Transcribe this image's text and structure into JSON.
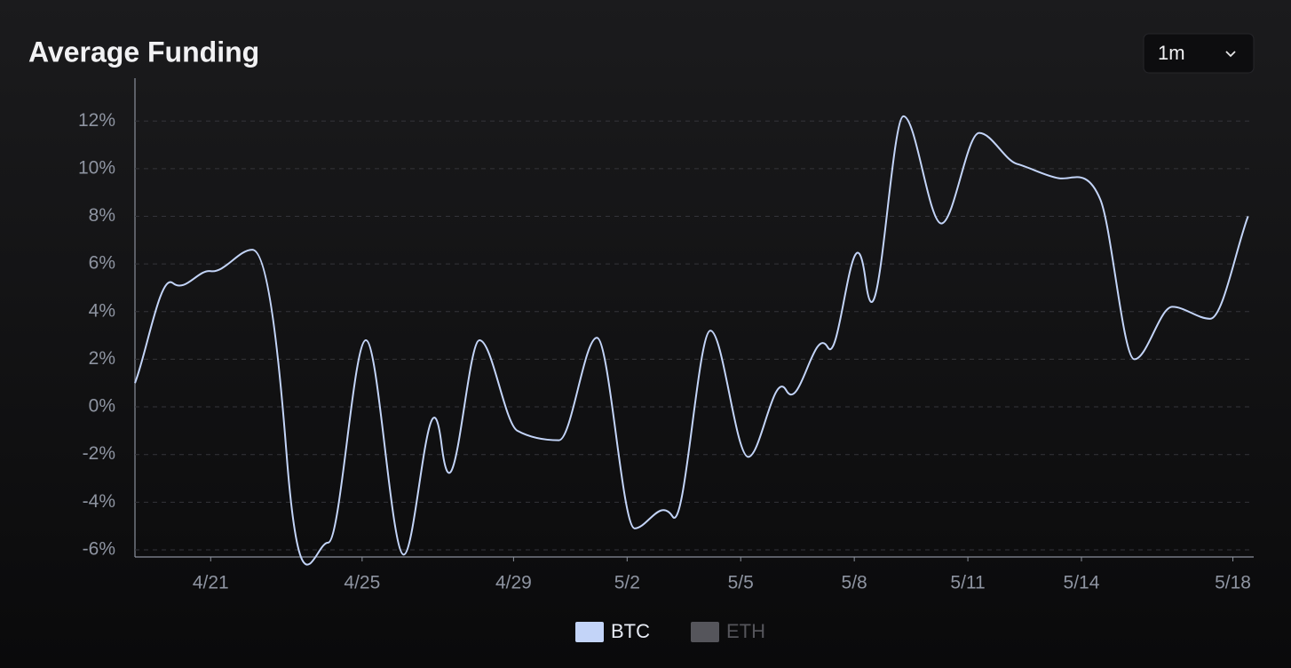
{
  "chart_data": {
    "type": "line",
    "title": "Average Funding",
    "range_selector": "1m",
    "x": [
      0.0,
      1.0,
      2.0,
      3.1,
      4.0,
      5.1,
      6.1,
      7.1,
      8.1,
      9.1,
      10.1,
      11.2,
      12.2,
      13.2,
      14.2,
      15.2,
      16.2,
      17.2,
      18.3,
      19.3,
      20.3,
      21.3,
      22.3,
      23.3,
      24.4,
      25.5,
      26.4,
      27.4,
      28.4,
      29.4
    ],
    "series": [
      {
        "name": "BTC",
        "color": "#c3d4f8",
        "values": [
          1.0,
          5.2,
          5.7,
          6.6,
          -1.9,
          -5.7,
          2.8,
          -6.2,
          -1.6,
          2.8,
          -1.0,
          -1.4,
          2.9,
          -5.1,
          -4.6,
          3.2,
          -2.1,
          0.7,
          2.5,
          5.3,
          12.2,
          7.7,
          11.5,
          10.2,
          9.6,
          8.7,
          2.0,
          4.2,
          3.7,
          8.0
        ]
      },
      {
        "name": "ETH",
        "color": "#55555b",
        "hidden": true
      }
    ],
    "xlim": [
      0,
      29.55
    ],
    "xticks": [
      {
        "value": 2,
        "label": "4/21"
      },
      {
        "value": 6,
        "label": "4/25"
      },
      {
        "value": 10,
        "label": "4/29"
      },
      {
        "value": 13,
        "label": "5/2"
      },
      {
        "value": 16,
        "label": "5/5"
      },
      {
        "value": 19,
        "label": "5/8"
      },
      {
        "value": 22,
        "label": "5/11"
      },
      {
        "value": 25,
        "label": "5/14"
      },
      {
        "value": 29,
        "label": "5/18"
      }
    ],
    "ylim": [
      -6.3,
      13.8
    ],
    "yticks": [
      {
        "value": -6,
        "label": "-6%"
      },
      {
        "value": -4,
        "label": "-4%"
      },
      {
        "value": -2,
        "label": "-2%"
      },
      {
        "value": 0,
        "label": "0%"
      },
      {
        "value": 2,
        "label": "2%"
      },
      {
        "value": 4,
        "label": "4%"
      },
      {
        "value": 6,
        "label": "6%"
      },
      {
        "value": 8,
        "label": "8%"
      },
      {
        "value": 10,
        "label": "10%"
      },
      {
        "value": 12,
        "label": "12%"
      }
    ],
    "grid": true
  }
}
